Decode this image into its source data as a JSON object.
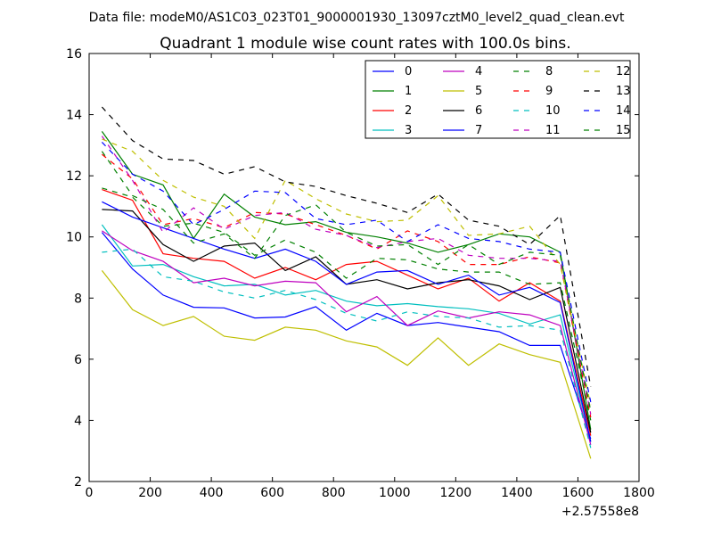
{
  "chart_data": {
    "type": "line",
    "suptitle": "Data file: modeM0/AS1C03_023T01_9000001930_13097cztM0_level2_quad_clean.evt",
    "title": "Quadrant 1 module wise count rates with 100.0s bins.",
    "xlabel": "",
    "ylabel": "",
    "x_offset_label": "+2.57558e8",
    "xlim": [
      0,
      1800
    ],
    "ylim": [
      2,
      16
    ],
    "xticks": [
      "0",
      "200",
      "400",
      "600",
      "800",
      "1000",
      "1200",
      "1400",
      "1600",
      "1800"
    ],
    "yticks": [
      "2",
      "4",
      "6",
      "8",
      "10",
      "12",
      "14",
      "16"
    ],
    "x": [
      42,
      142,
      242,
      342,
      442,
      542,
      642,
      742,
      842,
      942,
      1042,
      1142,
      1242,
      1342,
      1442,
      1542,
      1642
    ],
    "legend_position": "top-right",
    "series": [
      {
        "name": "0",
        "color": "#0000ff",
        "style": "solid",
        "values": [
          10.15,
          8.95,
          8.1,
          7.7,
          7.68,
          7.35,
          7.38,
          7.72,
          6.95,
          7.5,
          7.1,
          7.2,
          7.05,
          6.9,
          6.45,
          6.45,
          3.4
        ]
      },
      {
        "name": "1",
        "color": "#008000",
        "style": "solid",
        "values": [
          13.45,
          12.05,
          11.7,
          9.95,
          11.4,
          10.65,
          10.4,
          10.5,
          10.15,
          10.0,
          9.8,
          9.5,
          9.75,
          10.1,
          10.0,
          9.5,
          3.7
        ]
      },
      {
        "name": "2",
        "color": "#ff0000",
        "style": "solid",
        "values": [
          11.55,
          11.2,
          9.45,
          9.3,
          9.2,
          8.65,
          9.0,
          8.6,
          9.1,
          9.2,
          8.75,
          8.3,
          8.65,
          7.9,
          8.5,
          7.9,
          3.5
        ]
      },
      {
        "name": "3",
        "color": "#00bfbf",
        "style": "solid",
        "values": [
          10.4,
          9.05,
          9.1,
          8.7,
          8.4,
          8.45,
          8.1,
          8.25,
          7.9,
          7.75,
          7.82,
          7.72,
          7.65,
          7.5,
          7.15,
          7.45,
          3.3
        ]
      },
      {
        "name": "4",
        "color": "#bf00bf",
        "style": "solid",
        "values": [
          10.2,
          9.55,
          9.2,
          8.5,
          8.65,
          8.4,
          8.55,
          8.5,
          7.55,
          8.05,
          7.1,
          7.58,
          7.35,
          7.55,
          7.45,
          7.1,
          3.2
        ]
      },
      {
        "name": "5",
        "color": "#bfbf00",
        "style": "solid",
        "values": [
          8.9,
          7.62,
          7.1,
          7.4,
          6.75,
          6.62,
          7.05,
          6.95,
          6.6,
          6.4,
          5.8,
          6.7,
          5.8,
          6.5,
          6.15,
          5.9,
          2.75
        ]
      },
      {
        "name": "6",
        "color": "#000000",
        "style": "solid",
        "values": [
          10.9,
          10.85,
          9.75,
          9.2,
          9.7,
          9.8,
          8.9,
          9.35,
          8.45,
          8.6,
          8.3,
          8.5,
          8.6,
          8.4,
          7.95,
          8.35,
          3.6
        ]
      },
      {
        "name": "7",
        "color": "#0000ff",
        "style": "solid",
        "values": [
          11.15,
          10.65,
          10.3,
          9.95,
          9.6,
          9.3,
          9.6,
          9.2,
          8.45,
          8.85,
          8.9,
          8.45,
          8.75,
          8.1,
          8.35,
          7.85,
          3.3
        ]
      },
      {
        "name": "8",
        "color": "#008000",
        "style": "dashed",
        "values": [
          11.6,
          11.3,
          10.35,
          10.45,
          10.15,
          9.4,
          9.9,
          9.5,
          8.65,
          9.3,
          9.25,
          8.95,
          8.85,
          8.85,
          8.45,
          8.5,
          4.0
        ]
      },
      {
        "name": "9",
        "color": "#ff0000",
        "style": "dashed",
        "values": [
          12.7,
          11.9,
          10.4,
          10.6,
          10.3,
          10.8,
          10.75,
          10.4,
          10.05,
          9.6,
          10.2,
          9.85,
          9.1,
          9.1,
          9.35,
          9.15,
          4.1
        ]
      },
      {
        "name": "10",
        "color": "#00bfbf",
        "style": "dashed",
        "values": [
          9.5,
          9.6,
          8.7,
          8.55,
          8.2,
          8.0,
          8.25,
          7.95,
          7.5,
          7.25,
          7.55,
          7.4,
          7.35,
          7.05,
          7.1,
          6.95,
          3.1
        ]
      },
      {
        "name": "11",
        "color": "#bf00bf",
        "style": "dashed",
        "values": [
          13.3,
          11.85,
          10.15,
          10.95,
          10.25,
          10.7,
          10.8,
          10.25,
          10.05,
          9.65,
          9.85,
          9.95,
          9.4,
          9.3,
          9.3,
          9.2,
          4.2
        ]
      },
      {
        "name": "12",
        "color": "#bfbf00",
        "style": "dashed",
        "values": [
          13.2,
          12.8,
          11.85,
          11.3,
          11.0,
          9.95,
          11.85,
          11.25,
          10.75,
          10.5,
          10.55,
          11.35,
          10.05,
          10.1,
          10.35,
          9.1,
          4.5
        ]
      },
      {
        "name": "13",
        "color": "#000000",
        "style": "dashed",
        "values": [
          14.25,
          13.15,
          12.55,
          12.5,
          12.05,
          12.3,
          11.8,
          11.65,
          11.35,
          11.1,
          10.8,
          11.4,
          10.55,
          10.35,
          9.75,
          10.7,
          5.1
        ]
      },
      {
        "name": "14",
        "color": "#0000ff",
        "style": "dashed",
        "values": [
          13.1,
          12.05,
          11.5,
          10.4,
          10.9,
          11.5,
          11.45,
          10.6,
          10.4,
          10.55,
          9.85,
          10.4,
          9.95,
          9.85,
          9.6,
          9.5,
          4.6
        ]
      },
      {
        "name": "15",
        "color": "#008000",
        "style": "dashed",
        "values": [
          12.8,
          11.35,
          10.9,
          9.8,
          10.1,
          9.3,
          10.7,
          11.05,
          10.15,
          9.7,
          9.75,
          9.1,
          9.75,
          9.1,
          9.5,
          9.4,
          4.3
        ]
      }
    ]
  }
}
